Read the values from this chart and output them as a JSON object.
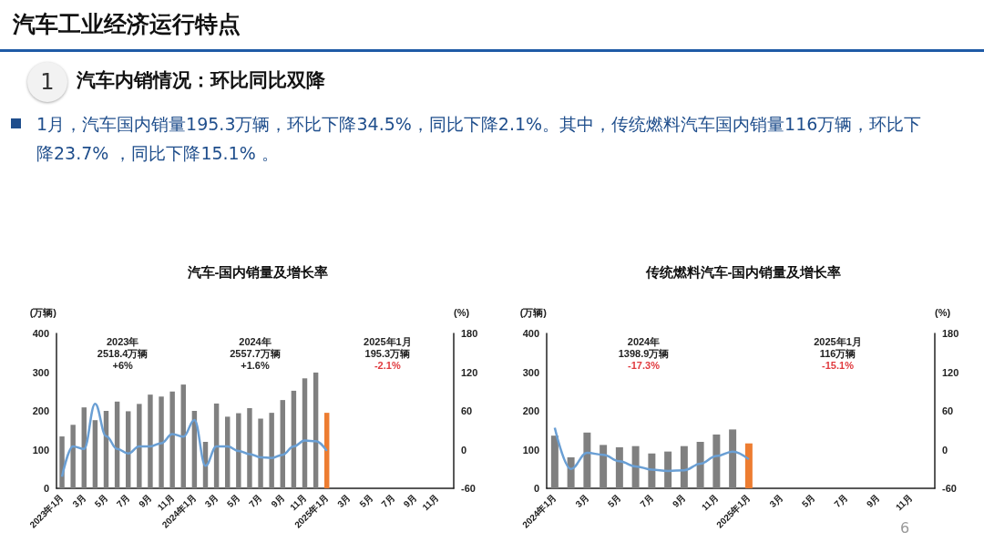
{
  "chart_data": [
    {
      "type": "other",
      "title": "汽车工业经济运行特点",
      "annotations": [
        "1",
        "汽车内销情况：环比同比双降",
        "1月，汽车国内销量195.3万辆，环比下降34.5%，同比下降2.1%。其中，传统燃料汽车国内销量116万辆，环比下降23.7% ，同比下降15.1% 。",
        "6"
      ]
    },
    {
      "type": "bar",
      "title": "汽车-国内销量及增长率",
      "ylabel": "(万辆)",
      "y2label": "(%)",
      "categories": [
        "2023年1月",
        null,
        "3月",
        null,
        "5月",
        null,
        "7月",
        null,
        "9月",
        null,
        "11月",
        null,
        "2024年1月",
        null,
        "3月",
        null,
        "5月",
        null,
        "7月",
        null,
        "9月",
        null,
        "11月",
        null,
        "2025年1月",
        null,
        "3月",
        null,
        "5月",
        null,
        "7月",
        null,
        "9月",
        null,
        "11月",
        null
      ],
      "series": [
        {
          "type": "bar",
          "values": [
            134,
            164,
            209,
            176,
            200,
            224,
            199,
            218,
            242,
            237,
            250,
            268,
            200,
            120,
            219,
            185,
            194,
            207,
            180,
            195,
            228,
            252,
            284,
            299,
            195,
            null,
            null,
            null,
            null,
            null,
            null,
            null,
            null,
            null,
            null,
            null
          ],
          "colors": [
            "#808080",
            "#808080",
            "#808080",
            "#808080",
            "#808080",
            "#808080",
            "#808080",
            "#808080",
            "#808080",
            "#808080",
            "#808080",
            "#808080",
            "#808080",
            "#808080",
            "#808080",
            "#808080",
            "#808080",
            "#808080",
            "#808080",
            "#808080",
            "#808080",
            "#808080",
            "#808080",
            "#808080",
            "#ed7d31",
            null,
            null,
            null,
            null,
            null,
            null,
            null,
            null,
            null,
            null,
            null
          ]
        },
        {
          "type": "line",
          "axis": "y2",
          "color": "#6a9fd4",
          "values": [
            -42,
            5,
            1,
            71,
            21,
            1,
            -6,
            5,
            5,
            10,
            24,
            20,
            46,
            -25,
            5,
            5,
            -2,
            -7,
            -12,
            -13,
            -8,
            5,
            14,
            13,
            -2,
            null,
            null,
            null,
            null,
            null,
            null,
            null,
            null,
            null,
            null,
            null
          ]
        }
      ],
      "ylim": [
        0,
        400
      ],
      "yticks": [
        0,
        100,
        200,
        300,
        400
      ],
      "y2lim": [
        -60,
        180
      ],
      "y2ticks": [
        -60,
        0,
        60,
        120,
        180
      ],
      "marker": "none",
      "grid": false,
      "annotations": [
        "2023年\n2518.4万辆\n+6%",
        "2024年\n2557.7万辆\n+1.6%",
        "2025年1月\n195.3万辆\n-2.1%"
      ]
    },
    {
      "type": "bar",
      "title": "传统燃料汽车-国内销量及增长率",
      "ylabel": "(万辆)",
      "y2label": "(%)",
      "categories": [
        "2024年1月",
        null,
        "3月",
        null,
        "5月",
        null,
        "7月",
        null,
        "9月",
        null,
        "11月",
        null,
        "2025年1月",
        null,
        "3月",
        null,
        "5月",
        null,
        "7月",
        null,
        "9月",
        null,
        "11月",
        null
      ],
      "series": [
        {
          "type": "bar",
          "values": [
            136,
            80,
            144,
            112,
            106,
            109,
            90,
            95,
            109,
            120,
            139,
            152,
            116,
            null,
            null,
            null,
            null,
            null,
            null,
            null,
            null,
            null,
            null,
            null
          ],
          "colors": [
            "#808080",
            "#808080",
            "#808080",
            "#808080",
            "#808080",
            "#808080",
            "#808080",
            "#808080",
            "#808080",
            "#808080",
            "#808080",
            "#808080",
            "#ed7d31",
            null,
            null,
            null,
            null,
            null,
            null,
            null,
            null,
            null,
            null,
            null
          ]
        },
        {
          "type": "line",
          "axis": "y2",
          "color": "#6a9fd4",
          "values": [
            34,
            -30,
            -5,
            -8,
            -18,
            -26,
            -31,
            -33,
            -32,
            -22,
            -10,
            -3,
            -15,
            null,
            null,
            null,
            null,
            null,
            null,
            null,
            null,
            null,
            null,
            null
          ]
        }
      ],
      "ylim": [
        0,
        400
      ],
      "yticks": [
        0,
        100,
        200,
        300,
        400
      ],
      "y2lim": [
        -60,
        180
      ],
      "y2ticks": [
        -60,
        0,
        60,
        120,
        180
      ],
      "marker": "none",
      "grid": false,
      "annotations": [
        "2024年\n1398.9万辆\n-17.3%",
        "2025年1月\n116万辆\n-15.1%"
      ]
    }
  ]
}
